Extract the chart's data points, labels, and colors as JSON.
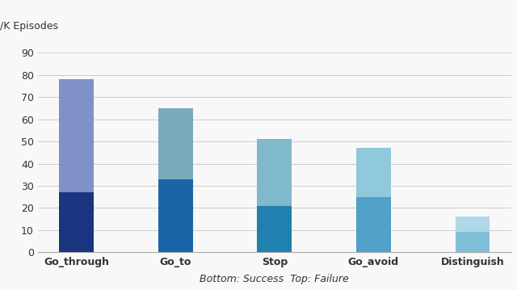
{
  "categories": [
    "Go_through",
    "Go_to",
    "Stop",
    "Go_avoid",
    "Distinguish"
  ],
  "success_values": [
    27,
    33,
    21,
    25,
    9
  ],
  "total_values": [
    78,
    65,
    51,
    47,
    16
  ],
  "success_colors": [
    "#1a3580",
    "#1a65a8",
    "#2080b0",
    "#50a0c8",
    "#80c0d8"
  ],
  "failure_colors": [
    "#8090c8",
    "#7aaabb",
    "#80b8cc",
    "#90c8dc",
    "#b0d8e8"
  ],
  "ylabel": "/K Episodes",
  "xlabel": "Bottom: Success  Top: Failure",
  "yticks": [
    0,
    10,
    20,
    30,
    40,
    50,
    60,
    70,
    80,
    90
  ],
  "ylim": [
    0,
    95
  ],
  "background_color": "#f8f8f8",
  "grid_color": "#cccccc"
}
